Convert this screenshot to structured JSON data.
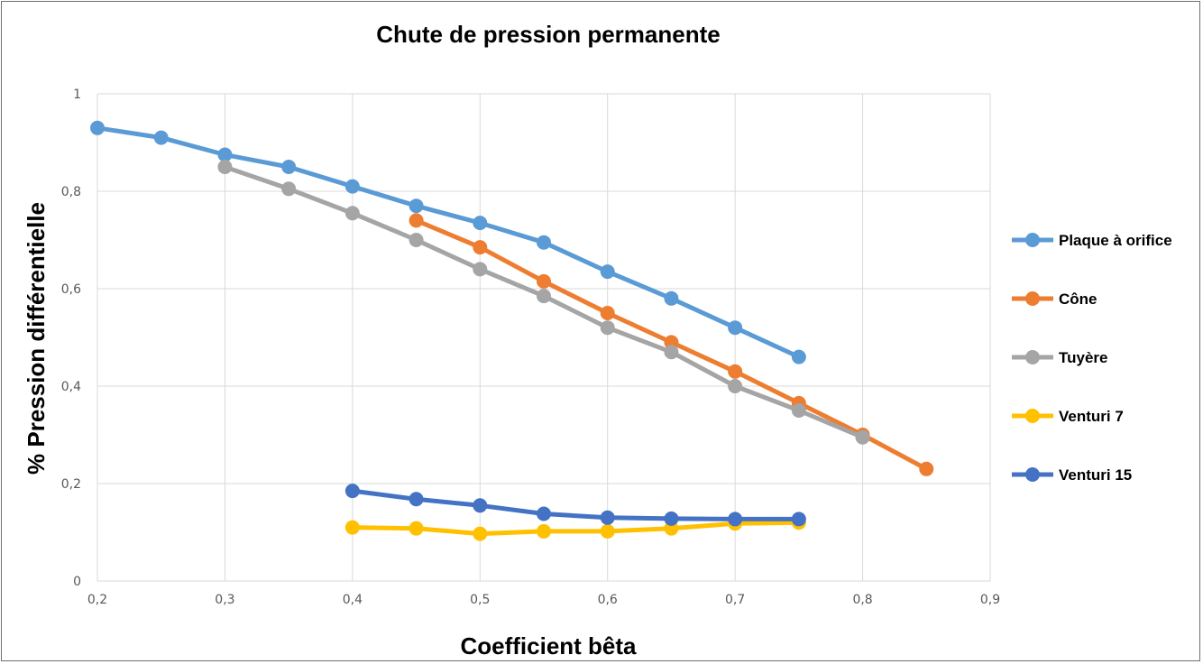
{
  "chart_data": {
    "type": "line",
    "title": "Chute de pression permanente",
    "xlabel": "Coefficient bêta",
    "ylabel": "% Pression différentielle",
    "xlim": [
      0.2,
      0.9
    ],
    "ylim": [
      0,
      1
    ],
    "x_ticks": [
      "0,2",
      "0,3",
      "0,4",
      "0,5",
      "0,6",
      "0,7",
      "0,8",
      "0,9"
    ],
    "y_ticks": [
      "0",
      "0,2",
      "0,4",
      "0,6",
      "0,8",
      "1"
    ],
    "grid": true,
    "legend_position": "right",
    "series": [
      {
        "name": "Plaque à orifice",
        "color": "#5b9bd5",
        "x": [
          0.2,
          0.25,
          0.3,
          0.35,
          0.4,
          0.45,
          0.5,
          0.55,
          0.6,
          0.65,
          0.7,
          0.75
        ],
        "y": [
          0.93,
          0.91,
          0.875,
          0.85,
          0.81,
          0.77,
          0.735,
          0.695,
          0.635,
          0.58,
          0.52,
          0.46
        ]
      },
      {
        "name": "Cône",
        "color": "#ed7d31",
        "x": [
          0.45,
          0.5,
          0.55,
          0.6,
          0.65,
          0.7,
          0.75,
          0.8,
          0.85
        ],
        "y": [
          0.74,
          0.685,
          0.615,
          0.55,
          0.49,
          0.43,
          0.365,
          0.3,
          0.23
        ]
      },
      {
        "name": "Tuyère",
        "color": "#a5a5a5",
        "x": [
          0.3,
          0.35,
          0.4,
          0.45,
          0.5,
          0.55,
          0.6,
          0.65,
          0.7,
          0.75,
          0.8
        ],
        "y": [
          0.85,
          0.805,
          0.755,
          0.7,
          0.64,
          0.585,
          0.52,
          0.47,
          0.4,
          0.35,
          0.295
        ]
      },
      {
        "name": "Venturi 7",
        "color": "#ffc000",
        "x": [
          0.4,
          0.45,
          0.5,
          0.55,
          0.6,
          0.65,
          0.7,
          0.75
        ],
        "y": [
          0.11,
          0.108,
          0.097,
          0.102,
          0.102,
          0.108,
          0.118,
          0.12
        ]
      },
      {
        "name": "Venturi 15",
        "color": "#4472c4",
        "x": [
          0.4,
          0.45,
          0.5,
          0.55,
          0.6,
          0.65,
          0.7,
          0.75
        ],
        "y": [
          0.185,
          0.168,
          0.155,
          0.138,
          0.13,
          0.128,
          0.127,
          0.127
        ]
      }
    ]
  }
}
